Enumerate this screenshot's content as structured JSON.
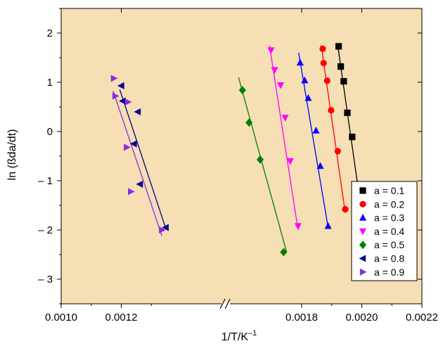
{
  "chart_data": {
    "type": "scatter",
    "xlabel": "1/T/K",
    "xlabel_sup": "–1",
    "ylabel": "ln (ßda/dt)",
    "xlim": [
      0.001,
      0.0022
    ],
    "ylim": [
      -3.5,
      2.5
    ],
    "x_axis_break_at": 0.00155,
    "x_ticks": [
      {
        "v": 0.001,
        "label": "0.0010"
      },
      {
        "v": 0.0012,
        "label": "0.0012"
      },
      {
        "v": 0.0018,
        "label": "0.0018"
      },
      {
        "v": 0.002,
        "label": "0.0020"
      },
      {
        "v": 0.0022,
        "label": "0.0022"
      }
    ],
    "y_ticks": [
      {
        "v": 2,
        "label": "2"
      },
      {
        "v": 1,
        "label": "1"
      },
      {
        "v": 0,
        "label": "0"
      },
      {
        "v": -1,
        "label": "– 1"
      },
      {
        "v": -2,
        "label": "– 2"
      },
      {
        "v": -3,
        "label": "– 3"
      }
    ],
    "plot_background": "#f6deb5",
    "legend_position": "bottom-right",
    "series": [
      {
        "name": "a = 0.1",
        "color": "#000000",
        "marker": "square",
        "x": [
          0.001923,
          0.00193,
          0.00194,
          0.001952,
          0.001968,
          0.001993
        ],
        "y": [
          1.73,
          1.32,
          1.02,
          0.38,
          -0.11,
          -1.38
        ],
        "fit": {
          "x": [
            0.00192,
            0.001995
          ],
          "y": [
            1.75,
            -1.45
          ]
        }
      },
      {
        "name": "a = 0.2",
        "color": "#ff0000",
        "marker": "circle",
        "x": [
          0.00187,
          0.001873,
          0.001885,
          0.001898,
          0.00192,
          0.001945
        ],
        "y": [
          1.68,
          1.39,
          1.03,
          0.43,
          -0.4,
          -1.58
        ],
        "fit": {
          "x": [
            0.001865,
            0.001945
          ],
          "y": [
            1.75,
            -1.65
          ]
        }
      },
      {
        "name": "a = 0.3",
        "color": "#0000ff",
        "marker": "triangle-up",
        "x": [
          0.001795,
          0.00181,
          0.001822,
          0.001848,
          0.001862,
          0.001888
        ],
        "y": [
          1.4,
          1.04,
          0.68,
          0.02,
          -0.7,
          -1.92
        ],
        "fit": {
          "x": [
            0.00179,
            0.001888
          ],
          "y": [
            1.6,
            -1.95
          ]
        }
      },
      {
        "name": "a = 0.4",
        "color": "#ff00ff",
        "marker": "triangle-down",
        "x": [
          0.001698,
          0.00171,
          0.00173,
          0.001745,
          0.001762,
          0.001788
        ],
        "y": [
          1.65,
          1.25,
          0.94,
          0.28,
          -0.6,
          -1.92
        ],
        "fit": {
          "x": [
            0.001693,
            0.001788
          ],
          "y": [
            1.75,
            -2.0
          ]
        }
      },
      {
        "name": "a = 0.5",
        "color": "#008000",
        "marker": "diamond",
        "x": [
          0.001603,
          0.001625,
          0.001662,
          0.00174
        ],
        "y": [
          0.84,
          0.18,
          -0.57,
          -2.45
        ],
        "fit": {
          "x": [
            0.00159,
            0.00175
          ],
          "y": [
            1.1,
            -2.45
          ]
        }
      },
      {
        "name": "a = 0.8",
        "color": "#00008b",
        "marker": "triangle-left",
        "x": [
          0.0012,
          0.001205,
          0.001255,
          0.001242,
          0.001262,
          0.001348
        ],
        "y": [
          0.93,
          0.62,
          0.4,
          -0.25,
          -1.07,
          -1.95
        ],
        "fit": {
          "x": [
            0.001195,
            0.001348
          ],
          "y": [
            0.85,
            -1.97
          ]
        }
      },
      {
        "name": "a = 0.9",
        "color": "#8a2be2",
        "marker": "triangle-right",
        "x": [
          0.001175,
          0.00118,
          0.001222,
          0.001218,
          0.001232,
          0.001335
        ],
        "y": [
          1.08,
          0.72,
          0.6,
          -0.32,
          -1.22,
          -2.0
        ],
        "fit": {
          "x": [
            0.001173,
            0.001335
          ],
          "y": [
            0.82,
            -2.12
          ]
        }
      }
    ]
  }
}
